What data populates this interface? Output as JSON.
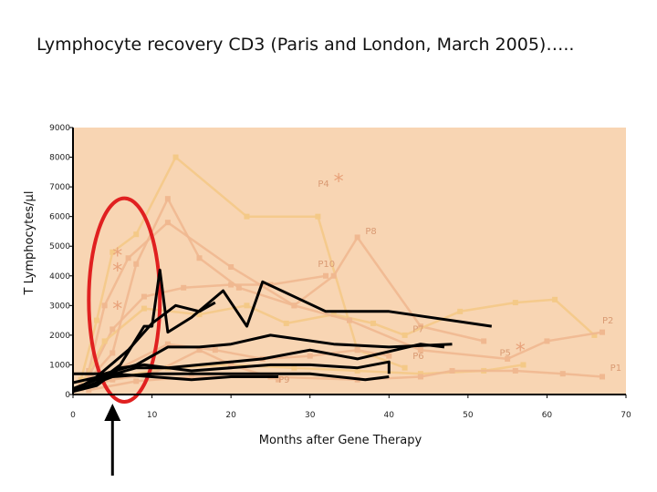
{
  "title": "Lymphocyte recovery CD3 (Paris and London, March 2005)…..",
  "chart_data": {
    "type": "line",
    "title": "Lymphocyte recovery CD3 (Paris and London, March 2005)…..",
    "xlabel": "Months after Gene Therapy",
    "ylabel": "T Lymphocytes/µl",
    "xlim": [
      0,
      70
    ],
    "ylim": [
      0,
      9000
    ],
    "x_ticks": [
      "0",
      "10",
      "20",
      "30",
      "40",
      "50",
      "60",
      "70"
    ],
    "y_ticks": [
      "0",
      "1000",
      "2000",
      "3000",
      "4000",
      "5000",
      "6000",
      "7000",
      "8000",
      "9000"
    ],
    "colors": {
      "plot_bg": "#f8d5b3",
      "faded_series": "#f0b890",
      "faded_series_alt": "#f4c987",
      "black_series": "#000000",
      "highlight_ellipse": "#e02020",
      "label": "#d99a73"
    },
    "series": [
      {
        "name": "P4",
        "style": "faded",
        "points": [
          [
            1,
            500
          ],
          [
            3,
            2500
          ],
          [
            5,
            4800
          ],
          [
            8,
            5400
          ],
          [
            13,
            8000
          ],
          [
            22,
            6000
          ],
          [
            31,
            6000
          ],
          [
            36,
            1500
          ],
          [
            42,
            900
          ]
        ]
      },
      {
        "name": "P8",
        "style": "faded",
        "points": [
          [
            2,
            800
          ],
          [
            4,
            3000
          ],
          [
            7,
            4600
          ],
          [
            12,
            5800
          ],
          [
            20,
            4300
          ],
          [
            28,
            3000
          ],
          [
            33,
            4000
          ],
          [
            36,
            5300
          ],
          [
            44,
            2300
          ],
          [
            52,
            1800
          ]
        ]
      },
      {
        "name": "P10",
        "style": "faded",
        "points": [
          [
            2,
            600
          ],
          [
            5,
            2200
          ],
          [
            9,
            3300
          ],
          [
            14,
            3600
          ],
          [
            20,
            3700
          ],
          [
            25,
            3700
          ],
          [
            32,
            4000
          ]
        ]
      },
      {
        "name": "P7",
        "style": "faded",
        "points": [
          [
            1,
            300
          ],
          [
            4,
            1800
          ],
          [
            9,
            2900
          ],
          [
            16,
            2700
          ],
          [
            22,
            3000
          ],
          [
            27,
            2400
          ],
          [
            33,
            2700
          ],
          [
            38,
            2400
          ],
          [
            42,
            2000
          ],
          [
            49,
            2800
          ],
          [
            56,
            3100
          ],
          [
            61,
            3200
          ],
          [
            66,
            2000
          ]
        ]
      },
      {
        "name": "P2",
        "style": "faded",
        "points": [
          [
            1,
            200
          ],
          [
            5,
            1400
          ],
          [
            8,
            4400
          ],
          [
            12,
            6600
          ],
          [
            16,
            4600
          ],
          [
            21,
            3600
          ],
          [
            28,
            3000
          ],
          [
            35,
            2500
          ],
          [
            44,
            1500
          ],
          [
            55,
            1200
          ],
          [
            60,
            1800
          ],
          [
            67,
            2100
          ]
        ]
      },
      {
        "name": "P6",
        "style": "faded",
        "points": [
          [
            1,
            300
          ],
          [
            6,
            900
          ],
          [
            12,
            1700
          ],
          [
            18,
            1500
          ],
          [
            24,
            1200
          ],
          [
            30,
            1300
          ],
          [
            36,
            1500
          ],
          [
            40,
            1300
          ]
        ]
      },
      {
        "name": "P5",
        "style": "faded",
        "points": [
          [
            2,
            300
          ],
          [
            6,
            600
          ],
          [
            12,
            900
          ],
          [
            20,
            1000
          ],
          [
            28,
            900
          ],
          [
            36,
            800
          ],
          [
            44,
            700
          ],
          [
            52,
            800
          ],
          [
            57,
            1000
          ]
        ]
      },
      {
        "name": "P1",
        "style": "faded",
        "points": [
          [
            2,
            150
          ],
          [
            8,
            450
          ],
          [
            15,
            600
          ],
          [
            25,
            600
          ],
          [
            36,
            500
          ],
          [
            44,
            600
          ],
          [
            48,
            800
          ],
          [
            56,
            800
          ],
          [
            62,
            700
          ],
          [
            67,
            600
          ]
        ]
      },
      {
        "name": "P9",
        "style": "faded",
        "points": [
          [
            1,
            200
          ],
          [
            5,
            500
          ],
          [
            10,
            700
          ],
          [
            16,
            1500
          ],
          [
            20,
            1000
          ],
          [
            26,
            500
          ]
        ]
      },
      {
        "name": "",
        "style": "black",
        "points": [
          [
            0,
            100
          ],
          [
            3,
            400
          ],
          [
            6,
            1000
          ],
          [
            9,
            2300
          ],
          [
            10,
            2300
          ],
          [
            11,
            4200
          ],
          [
            12,
            2100
          ],
          [
            15,
            2600
          ],
          [
            19,
            3500
          ],
          [
            22,
            2300
          ],
          [
            24,
            3800
          ],
          [
            32,
            2800
          ],
          [
            40,
            2800
          ],
          [
            53,
            2300
          ]
        ]
      },
      {
        "name": "",
        "style": "black",
        "points": [
          [
            0,
            100
          ],
          [
            3,
            600
          ],
          [
            7,
            1500
          ],
          [
            10,
            2400
          ],
          [
            13,
            3000
          ],
          [
            16,
            2800
          ],
          [
            18,
            3100
          ]
        ]
      },
      {
        "name": "",
        "style": "black",
        "points": [
          [
            0,
            200
          ],
          [
            4,
            600
          ],
          [
            8,
            900
          ],
          [
            12,
            900
          ],
          [
            16,
            1000
          ],
          [
            24,
            1200
          ],
          [
            30,
            1500
          ],
          [
            36,
            1200
          ],
          [
            44,
            1700
          ],
          [
            47,
            1600
          ]
        ]
      },
      {
        "name": "",
        "style": "black",
        "points": [
          [
            0,
            700
          ],
          [
            4,
            700
          ],
          [
            8,
            1000
          ],
          [
            12,
            1600
          ],
          [
            16,
            1600
          ],
          [
            20,
            1700
          ],
          [
            25,
            2000
          ],
          [
            33,
            1700
          ],
          [
            40,
            1600
          ],
          [
            48,
            1700
          ]
        ]
      },
      {
        "name": "",
        "style": "black",
        "points": [
          [
            0,
            100
          ],
          [
            3,
            300
          ],
          [
            6,
            900
          ],
          [
            9,
            1000
          ],
          [
            15,
            800
          ],
          [
            25,
            1000
          ],
          [
            30,
            1000
          ],
          [
            36,
            900
          ],
          [
            40,
            1100
          ],
          [
            40,
            700
          ]
        ]
      },
      {
        "name": "",
        "style": "black",
        "points": [
          [
            0,
            100
          ],
          [
            2,
            300
          ],
          [
            5,
            600
          ],
          [
            10,
            700
          ],
          [
            20,
            700
          ],
          [
            30,
            700
          ],
          [
            37,
            500
          ],
          [
            40,
            600
          ]
        ]
      },
      {
        "name": "",
        "style": "black",
        "points": [
          [
            0,
            400
          ],
          [
            5,
            700
          ],
          [
            10,
            600
          ],
          [
            15,
            500
          ],
          [
            20,
            600
          ],
          [
            26,
            600
          ]
        ]
      }
    ],
    "labels": [
      {
        "text": "P4",
        "x": 31,
        "y": 7000
      },
      {
        "text": "P8",
        "x": 37,
        "y": 5400
      },
      {
        "text": "P10",
        "x": 31,
        "y": 4300
      },
      {
        "text": "P7",
        "x": 43,
        "y": 2100
      },
      {
        "text": "P2",
        "x": 67,
        "y": 2400
      },
      {
        "text": "P6",
        "x": 43,
        "y": 1200
      },
      {
        "text": "P5",
        "x": 54,
        "y": 1300
      },
      {
        "text": "P1",
        "x": 68,
        "y": 800
      },
      {
        "text": "P9",
        "x": 26,
        "y": 400
      }
    ],
    "annotations": [
      {
        "text": "*",
        "x": 33,
        "y": 7200
      },
      {
        "text": "*",
        "x": 56,
        "y": 1500
      },
      {
        "text": "*",
        "x": 5,
        "y": 4700
      },
      {
        "text": "*",
        "x": 5,
        "y": 4200
      },
      {
        "text": "*",
        "x": 5,
        "y": 2900
      }
    ],
    "highlight": {
      "shape": "ellipse",
      "x_range": [
        2,
        11
      ],
      "y_range": [
        0,
        6000
      ]
    },
    "arrow": {
      "x": 5,
      "direction": "up"
    },
    "grid": false,
    "legend": "none"
  }
}
